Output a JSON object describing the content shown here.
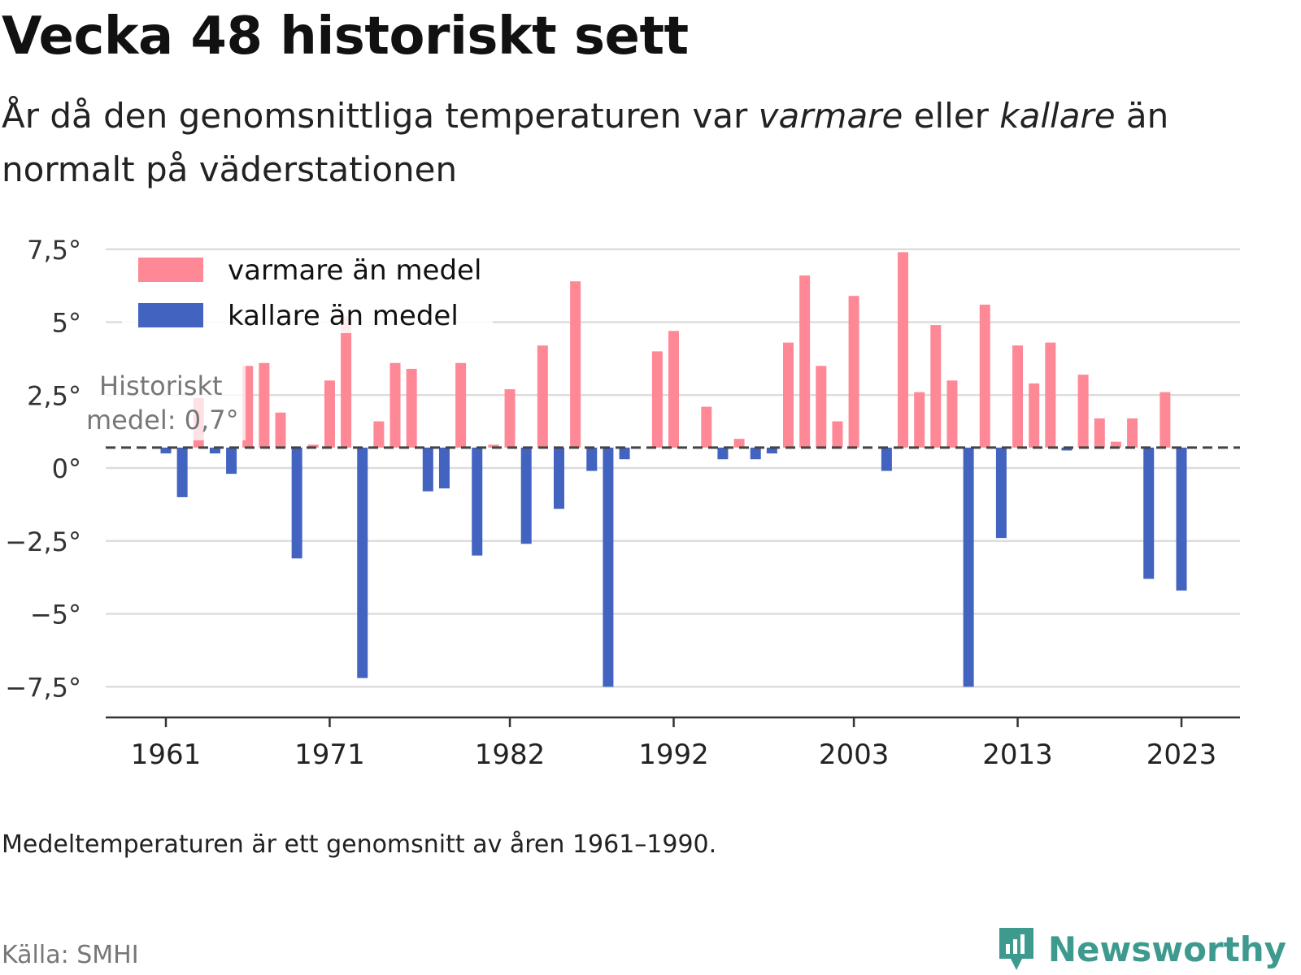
{
  "header": {
    "title": "Vecka 48 historiskt sett",
    "subtitle_parts": [
      "År då den genomsnittliga temperaturen var ",
      "varmare",
      " eller ",
      "kallare",
      " än normalt på väderstationen"
    ]
  },
  "footer": {
    "note": "Medeltemperaturen är ett genomsnitt av åren 1961–1990.",
    "source": "Källa: SMHI",
    "brand": "Newsworthy"
  },
  "colors": {
    "warm": "#ff8896",
    "cold": "#4263c0",
    "grid": "#dddddd",
    "axis": "#333333",
    "mean_line": "#444444",
    "brand": "#3e9a8f"
  },
  "chart_data": {
    "type": "bar",
    "baseline": 0.7,
    "baseline_label": [
      "Historiskt",
      "medel: 0,7°"
    ],
    "ylim": [
      -8.8,
      7.8
    ],
    "y_ticks": [
      7.5,
      5,
      2.5,
      0,
      -2.5,
      -5,
      -7.5
    ],
    "y_tick_labels": [
      "7,5°",
      "5°",
      "2,5°",
      "0°",
      "−2,5°",
      "−5°",
      "−7,5°"
    ],
    "x_ticks": [
      1961,
      1971,
      1982,
      1992,
      2003,
      2013,
      2023
    ],
    "x_tick_labels": [
      "1961",
      "1971",
      "1982",
      "1992",
      "2003",
      "2013",
      "2023"
    ],
    "legend": {
      "position": "top-left",
      "warm_label": "varmare än medel",
      "cold_label": "kallare än medel"
    },
    "series": [
      {
        "name": "temperatur",
        "x": [
          1961,
          1962,
          1963,
          1964,
          1965,
          1966,
          1967,
          1968,
          1969,
          1970,
          1971,
          1972,
          1973,
          1974,
          1975,
          1976,
          1977,
          1978,
          1979,
          1980,
          1981,
          1982,
          1983,
          1984,
          1985,
          1986,
          1987,
          1988,
          1989,
          1990,
          1991,
          1992,
          1993,
          1994,
          1995,
          1996,
          1997,
          1998,
          1999,
          2000,
          2001,
          2002,
          2003,
          2004,
          2005,
          2006,
          2007,
          2008,
          2009,
          2010,
          2011,
          2012,
          2013,
          2014,
          2015,
          2016,
          2017,
          2018,
          2019,
          2020,
          2021,
          2022,
          2023
        ],
        "values": [
          0.5,
          -1.0,
          2.4,
          0.5,
          -0.2,
          3.5,
          3.6,
          1.9,
          -3.1,
          0.8,
          3.0,
          5.2,
          -7.2,
          1.6,
          3.6,
          3.4,
          -0.8,
          -0.7,
          3.6,
          -3.0,
          0.8,
          2.7,
          -2.6,
          4.2,
          -1.4,
          6.4,
          -0.1,
          -7.5,
          0.3,
          null,
          4.0,
          4.7,
          null,
          2.1,
          0.3,
          1.0,
          0.3,
          0.5,
          4.3,
          6.6,
          3.5,
          1.6,
          5.9,
          null,
          -0.1,
          7.4,
          2.6,
          4.9,
          3.0,
          -7.5,
          5.6,
          -2.4,
          4.2,
          2.9,
          4.3,
          0.6,
          3.2,
          1.7,
          0.9,
          1.7,
          -3.8,
          2.6,
          -4.2
        ]
      }
    ]
  }
}
